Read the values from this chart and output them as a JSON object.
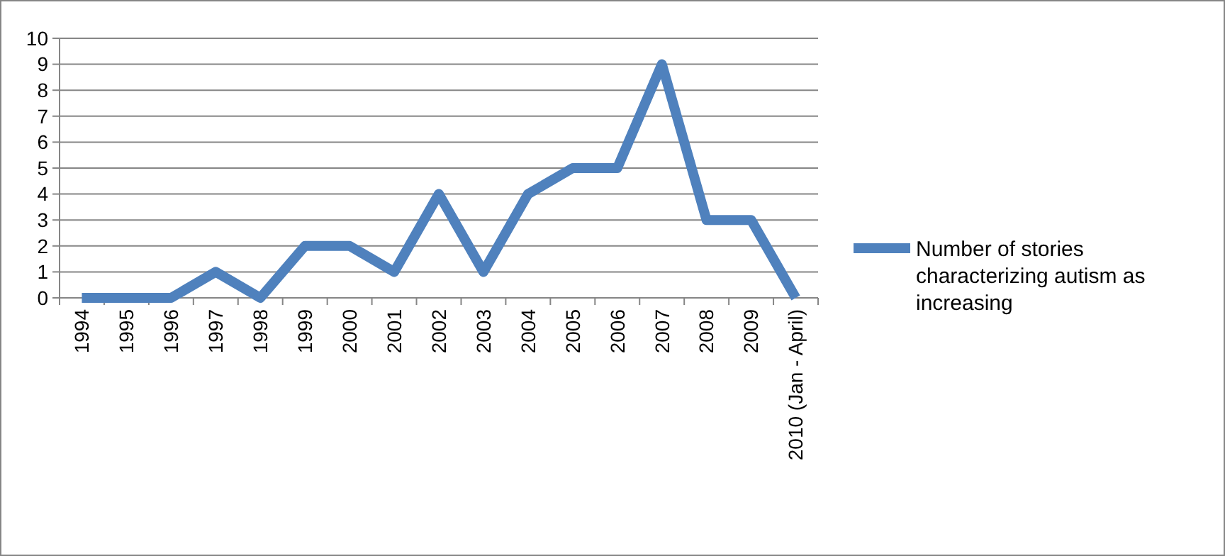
{
  "chart_data": {
    "type": "line",
    "categories": [
      "1994",
      "1995",
      "1996",
      "1997",
      "1998",
      "1999",
      "2000",
      "2001",
      "2002",
      "2003",
      "2004",
      "2005",
      "2006",
      "2007",
      "2008",
      "2009",
      "2010 (Jan - April)"
    ],
    "series": [
      {
        "name": "Number of stories characterizing autism as increasing",
        "color": "#4f81bd",
        "values": [
          0,
          0,
          0,
          1,
          0,
          2,
          2,
          1,
          4,
          1,
          4,
          5,
          5,
          9,
          3,
          3,
          0
        ]
      }
    ],
    "ylim": [
      0,
      10
    ],
    "yticks": [
      0,
      1,
      2,
      3,
      4,
      5,
      6,
      7,
      8,
      9,
      10
    ],
    "grid": "y",
    "legend": "right",
    "marker": "none",
    "line_style": "solid"
  }
}
